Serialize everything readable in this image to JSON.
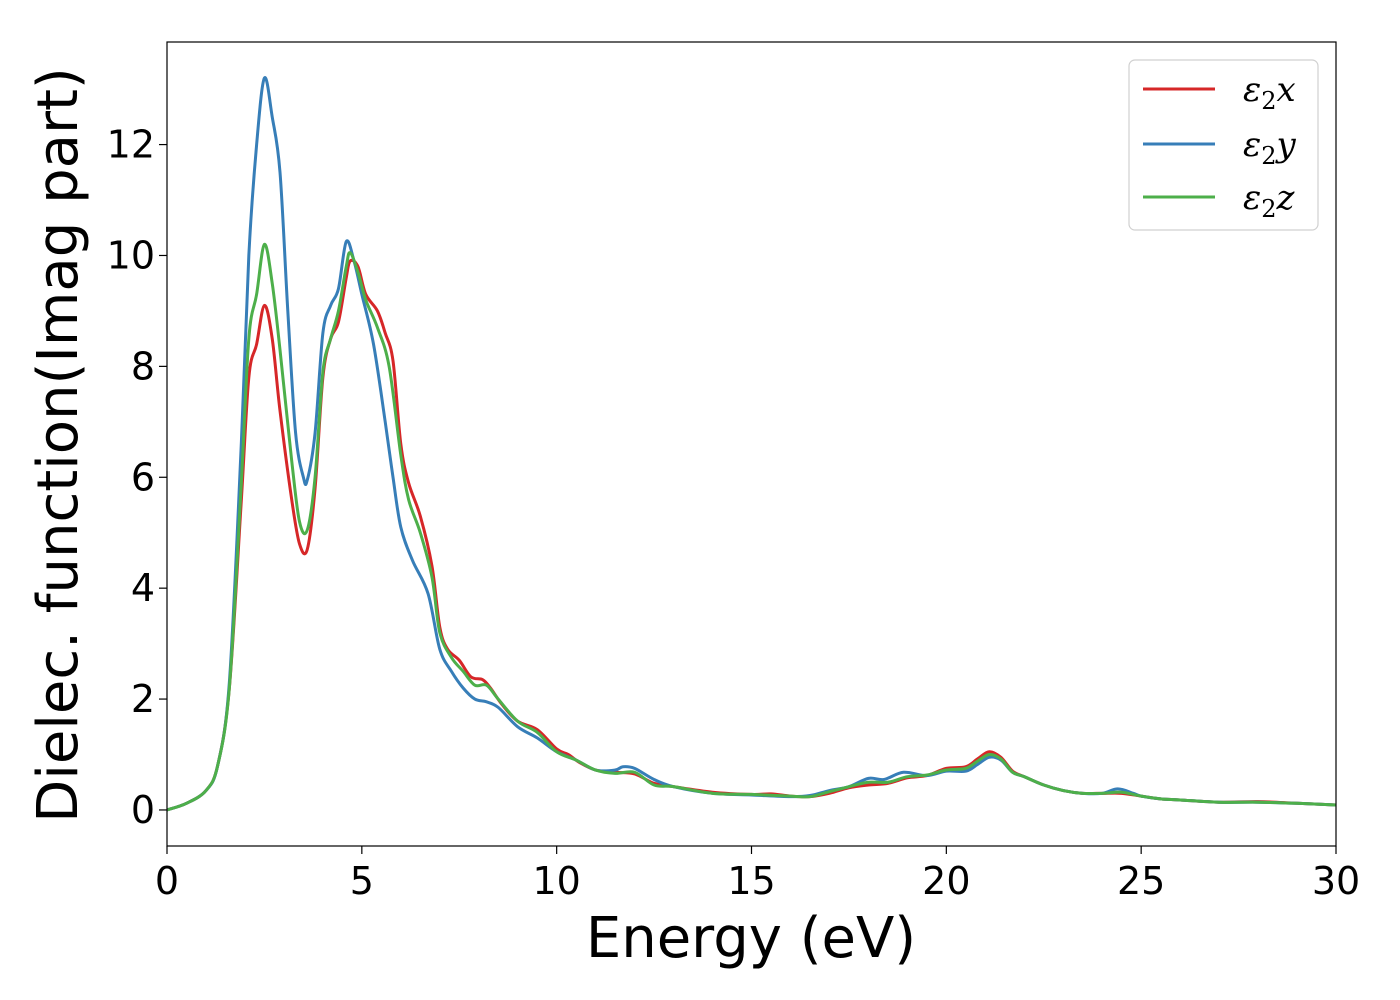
{
  "chart_data": {
    "type": "line",
    "xlabel": "Energy (eV)",
    "ylabel": "Dielec. function(Imag part)",
    "xlim": [
      0,
      30
    ],
    "ylim": [
      -0.65,
      13.85
    ],
    "xticks": [
      0,
      5,
      10,
      15,
      20,
      25,
      30
    ],
    "yticks": [
      0,
      2,
      4,
      6,
      8,
      10,
      12
    ],
    "grid": false,
    "legend_position": "top-right",
    "series": [
      {
        "name": "ε₂x",
        "legend_main": "ε",
        "legend_sub": "2",
        "legend_tail": "x",
        "color": "#d62728",
        "points": [
          [
            0,
            0
          ],
          [
            0.5,
            0.12
          ],
          [
            1.0,
            0.35
          ],
          [
            1.3,
            0.8
          ],
          [
            1.6,
            2.2
          ],
          [
            1.9,
            5.5
          ],
          [
            2.1,
            7.8
          ],
          [
            2.3,
            8.4
          ],
          [
            2.5,
            9.1
          ],
          [
            2.7,
            8.5
          ],
          [
            2.9,
            7.2
          ],
          [
            3.2,
            5.6
          ],
          [
            3.4,
            4.8
          ],
          [
            3.6,
            4.7
          ],
          [
            3.8,
            5.8
          ],
          [
            4.0,
            7.8
          ],
          [
            4.2,
            8.5
          ],
          [
            4.4,
            8.8
          ],
          [
            4.6,
            9.6
          ],
          [
            4.7,
            9.9
          ],
          [
            4.9,
            9.8
          ],
          [
            5.1,
            9.3
          ],
          [
            5.4,
            9.0
          ],
          [
            5.6,
            8.6
          ],
          [
            5.8,
            8.1
          ],
          [
            6.0,
            6.6
          ],
          [
            6.2,
            5.9
          ],
          [
            6.5,
            5.3
          ],
          [
            6.8,
            4.4
          ],
          [
            7.0,
            3.3
          ],
          [
            7.2,
            2.9
          ],
          [
            7.5,
            2.7
          ],
          [
            7.8,
            2.4
          ],
          [
            8.1,
            2.35
          ],
          [
            8.3,
            2.2
          ],
          [
            8.6,
            1.9
          ],
          [
            9.0,
            1.6
          ],
          [
            9.5,
            1.45
          ],
          [
            10.0,
            1.1
          ],
          [
            10.3,
            1.0
          ],
          [
            10.6,
            0.85
          ],
          [
            11.0,
            0.72
          ],
          [
            11.5,
            0.68
          ],
          [
            12.0,
            0.65
          ],
          [
            12.5,
            0.48
          ],
          [
            13.0,
            0.42
          ],
          [
            14.0,
            0.32
          ],
          [
            15.0,
            0.28
          ],
          [
            15.5,
            0.29
          ],
          [
            16.0,
            0.25
          ],
          [
            16.5,
            0.24
          ],
          [
            17.0,
            0.3
          ],
          [
            17.5,
            0.4
          ],
          [
            18.0,
            0.45
          ],
          [
            18.5,
            0.48
          ],
          [
            19.0,
            0.58
          ],
          [
            19.5,
            0.62
          ],
          [
            20.0,
            0.75
          ],
          [
            20.5,
            0.78
          ],
          [
            20.8,
            0.92
          ],
          [
            21.1,
            1.05
          ],
          [
            21.4,
            0.95
          ],
          [
            21.7,
            0.7
          ],
          [
            22.0,
            0.6
          ],
          [
            22.5,
            0.45
          ],
          [
            23.0,
            0.35
          ],
          [
            23.5,
            0.3
          ],
          [
            24.0,
            0.3
          ],
          [
            24.5,
            0.3
          ],
          [
            25.0,
            0.25
          ],
          [
            25.5,
            0.2
          ],
          [
            26.0,
            0.18
          ],
          [
            27.0,
            0.14
          ],
          [
            28.0,
            0.15
          ],
          [
            29.0,
            0.12
          ],
          [
            30.0,
            0.09
          ]
        ]
      },
      {
        "name": "ε₂y",
        "legend_main": "ε",
        "legend_sub": "2",
        "legend_tail": "y",
        "color": "#377eb8",
        "points": [
          [
            0,
            0
          ],
          [
            0.5,
            0.12
          ],
          [
            1.0,
            0.35
          ],
          [
            1.3,
            0.8
          ],
          [
            1.6,
            2.3
          ],
          [
            1.9,
            6.5
          ],
          [
            2.1,
            10.0
          ],
          [
            2.3,
            12.0
          ],
          [
            2.5,
            13.2
          ],
          [
            2.7,
            12.5
          ],
          [
            2.9,
            11.5
          ],
          [
            3.1,
            9.0
          ],
          [
            3.3,
            6.8
          ],
          [
            3.5,
            6.0
          ],
          [
            3.6,
            5.95
          ],
          [
            3.8,
            6.8
          ],
          [
            4.0,
            8.6
          ],
          [
            4.2,
            9.1
          ],
          [
            4.4,
            9.4
          ],
          [
            4.6,
            10.25
          ],
          [
            4.8,
            9.9
          ],
          [
            5.0,
            9.3
          ],
          [
            5.3,
            8.4
          ],
          [
            5.6,
            7.0
          ],
          [
            5.8,
            6.0
          ],
          [
            6.0,
            5.1
          ],
          [
            6.3,
            4.5
          ],
          [
            6.7,
            3.9
          ],
          [
            7.0,
            2.9
          ],
          [
            7.3,
            2.5
          ],
          [
            7.6,
            2.2
          ],
          [
            7.9,
            2.0
          ],
          [
            8.2,
            1.95
          ],
          [
            8.5,
            1.85
          ],
          [
            9.0,
            1.5
          ],
          [
            9.5,
            1.3
          ],
          [
            10.0,
            1.05
          ],
          [
            10.5,
            0.9
          ],
          [
            11.0,
            0.72
          ],
          [
            11.5,
            0.72
          ],
          [
            11.7,
            0.78
          ],
          [
            12.0,
            0.75
          ],
          [
            12.5,
            0.55
          ],
          [
            13.0,
            0.42
          ],
          [
            14.0,
            0.3
          ],
          [
            15.0,
            0.27
          ],
          [
            16.0,
            0.24
          ],
          [
            16.5,
            0.26
          ],
          [
            17.0,
            0.35
          ],
          [
            17.5,
            0.42
          ],
          [
            18.0,
            0.57
          ],
          [
            18.4,
            0.55
          ],
          [
            18.9,
            0.68
          ],
          [
            19.5,
            0.62
          ],
          [
            20.0,
            0.7
          ],
          [
            20.5,
            0.7
          ],
          [
            20.8,
            0.82
          ],
          [
            21.1,
            0.95
          ],
          [
            21.4,
            0.9
          ],
          [
            21.7,
            0.68
          ],
          [
            22.0,
            0.6
          ],
          [
            22.5,
            0.45
          ],
          [
            23.0,
            0.35
          ],
          [
            23.5,
            0.3
          ],
          [
            24.0,
            0.3
          ],
          [
            24.4,
            0.38
          ],
          [
            24.8,
            0.3
          ],
          [
            25.0,
            0.25
          ],
          [
            25.5,
            0.2
          ],
          [
            26.0,
            0.18
          ],
          [
            27.0,
            0.14
          ],
          [
            28.0,
            0.14
          ],
          [
            29.0,
            0.12
          ],
          [
            30.0,
            0.09
          ]
        ]
      },
      {
        "name": "ε₂z",
        "legend_main": "ε",
        "legend_sub": "2",
        "legend_tail": "z",
        "color": "#4daf4a",
        "points": [
          [
            0,
            0
          ],
          [
            0.5,
            0.12
          ],
          [
            1.0,
            0.35
          ],
          [
            1.3,
            0.8
          ],
          [
            1.6,
            2.2
          ],
          [
            1.9,
            5.8
          ],
          [
            2.1,
            8.5
          ],
          [
            2.3,
            9.3
          ],
          [
            2.5,
            10.2
          ],
          [
            2.7,
            9.5
          ],
          [
            2.9,
            8.3
          ],
          [
            3.2,
            6.3
          ],
          [
            3.4,
            5.2
          ],
          [
            3.6,
            5.05
          ],
          [
            3.8,
            6.0
          ],
          [
            4.0,
            7.9
          ],
          [
            4.2,
            8.5
          ],
          [
            4.4,
            9.0
          ],
          [
            4.6,
            9.8
          ],
          [
            4.7,
            10.05
          ],
          [
            4.9,
            9.7
          ],
          [
            5.1,
            9.2
          ],
          [
            5.4,
            8.7
          ],
          [
            5.7,
            8.0
          ],
          [
            6.0,
            6.4
          ],
          [
            6.2,
            5.6
          ],
          [
            6.5,
            5.0
          ],
          [
            6.8,
            4.2
          ],
          [
            7.0,
            3.2
          ],
          [
            7.3,
            2.75
          ],
          [
            7.6,
            2.5
          ],
          [
            7.9,
            2.25
          ],
          [
            8.2,
            2.25
          ],
          [
            8.5,
            2.0
          ],
          [
            9.0,
            1.6
          ],
          [
            9.5,
            1.4
          ],
          [
            10.0,
            1.05
          ],
          [
            10.5,
            0.9
          ],
          [
            11.0,
            0.72
          ],
          [
            11.5,
            0.66
          ],
          [
            12.0,
            0.68
          ],
          [
            12.5,
            0.45
          ],
          [
            13.0,
            0.42
          ],
          [
            14.0,
            0.3
          ],
          [
            15.0,
            0.28
          ],
          [
            16.0,
            0.25
          ],
          [
            16.5,
            0.24
          ],
          [
            17.0,
            0.33
          ],
          [
            17.5,
            0.42
          ],
          [
            18.0,
            0.5
          ],
          [
            18.5,
            0.5
          ],
          [
            19.0,
            0.6
          ],
          [
            19.5,
            0.63
          ],
          [
            20.0,
            0.72
          ],
          [
            20.5,
            0.75
          ],
          [
            20.8,
            0.88
          ],
          [
            21.1,
            1.0
          ],
          [
            21.4,
            0.92
          ],
          [
            21.7,
            0.68
          ],
          [
            22.0,
            0.6
          ],
          [
            22.5,
            0.45
          ],
          [
            23.0,
            0.35
          ],
          [
            23.5,
            0.3
          ],
          [
            24.0,
            0.3
          ],
          [
            24.5,
            0.32
          ],
          [
            25.0,
            0.25
          ],
          [
            25.5,
            0.2
          ],
          [
            26.0,
            0.18
          ],
          [
            27.0,
            0.14
          ],
          [
            28.0,
            0.14
          ],
          [
            29.0,
            0.12
          ],
          [
            30.0,
            0.09
          ]
        ]
      }
    ]
  }
}
